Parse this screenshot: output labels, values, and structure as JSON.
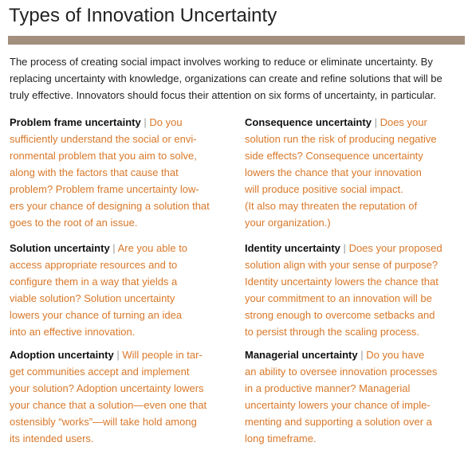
{
  "header": {
    "title": "Types of Innovation Uncertainty"
  },
  "intro": {
    "lines": [
      "The process of creating social impact involves working to reduce or eliminate uncertainty. By",
      "replacing uncertainty with knowledge, organizations can create and refine solutions that will be",
      "truly effective. Innovators should focus their attention on six forms of uncertainty, in particular."
    ]
  },
  "separator": "|",
  "items": [
    {
      "title": "Problem frame uncertainty",
      "lines": [
        "Do you",
        "sufficiently understand the social or envi-",
        "ronmental problem that you aim to solve,",
        "along with the factors that cause that",
        "problem? Problem frame uncertainty low-",
        "ers your chance of designing a solution that",
        "goes to the root of an issue."
      ]
    },
    {
      "title": "Consequence uncertainty",
      "lines": [
        "Does your",
        "solution run the risk of producing negative",
        "side effects? Consequence uncertainty",
        "lowers the chance that your innovation",
        "will produce positive social impact.",
        "(It also may threaten the reputation of",
        "your organization.)"
      ]
    },
    {
      "title": "Solution uncertainty",
      "lines": [
        "Are you able to",
        "access appropriate resources and to",
        "configure them in a way that yields a",
        "viable solution? Solution uncertainty",
        "lowers your chance of turning an idea",
        "into an effective innovation."
      ]
    },
    {
      "title": "Identity uncertainty",
      "lines": [
        "Does your proposed",
        "solution align with your sense of purpose?",
        "Identity uncertainty lowers the chance that",
        "your commitment to an innovation will be",
        "strong enough to overcome setbacks and",
        "to persist through the scaling process."
      ]
    },
    {
      "title": "Adoption uncertainty",
      "lines": [
        "Will people in tar-",
        "get communities accept and implement",
        "your solution? Adoption uncertainty lowers",
        "your chance that a solution—even one that",
        "ostensibly “works”—will take hold among",
        "its intended users."
      ]
    },
    {
      "title": "Managerial uncertainty",
      "lines": [
        "Do you have",
        "an ability to oversee innovation processes",
        "in a productive manner? Managerial",
        "uncertainty lowers your chance of imple-",
        "menting and supporting a solution over a",
        "long timeframe."
      ]
    }
  ]
}
